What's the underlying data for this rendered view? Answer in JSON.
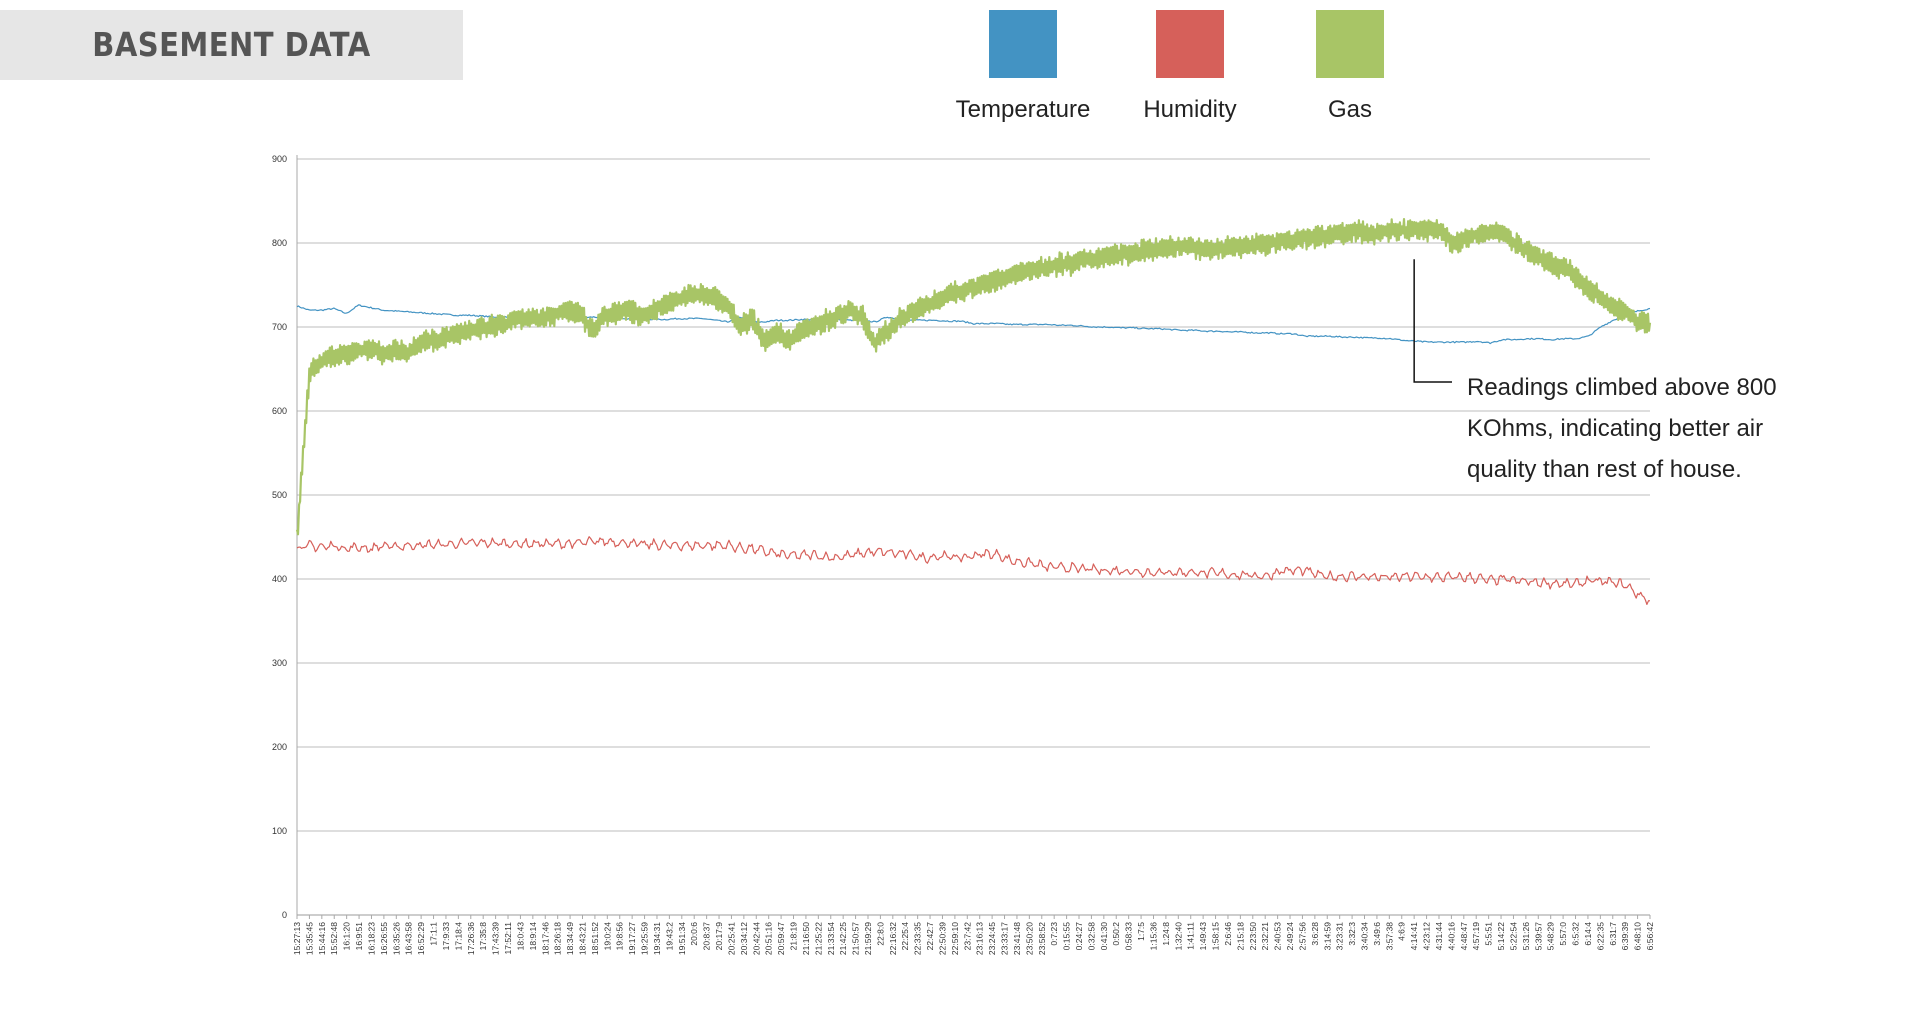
{
  "header": {
    "title": "BASEMENT DATA"
  },
  "legend": [
    {
      "label": "Temperature",
      "color": "#4393c3"
    },
    {
      "label": "Humidity",
      "color": "#d6605a"
    },
    {
      "label": "Gas",
      "color": "#a8c566"
    }
  ],
  "annotation": {
    "lines": [
      "Readings climbed above 800",
      "KOhms, indicating better air",
      "quality than rest of house."
    ]
  },
  "chart_data": {
    "type": "line",
    "title": "",
    "xlabel": "",
    "ylabel": "",
    "ylim": [
      0,
      900
    ],
    "y_ticks": [
      0,
      100,
      200,
      300,
      400,
      500,
      600,
      700,
      800,
      900
    ],
    "grid": true,
    "legend_position": "top",
    "x_ticks": [
      "15:27:13",
      "15:35:45",
      "15:44:16",
      "15:52:48",
      "16:1:20",
      "16:9:51",
      "16:18:23",
      "16:26:55",
      "16:35:26",
      "16:43:58",
      "16:52:29",
      "17:1:1",
      "17:9:33",
      "17:18:4",
      "17:26:36",
      "17:35:8",
      "17:43:39",
      "17:52:11",
      "18:0:43",
      "18:9:14",
      "18:17:46",
      "18:26:18",
      "18:34:49",
      "18:43:21",
      "18:51:52",
      "19:0:24",
      "19:8:56",
      "19:17:27",
      "19:25:59",
      "19:34:31",
      "19:43:2",
      "19:51:34",
      "20:0:6",
      "20:8:37",
      "20:17:9",
      "20:25:41",
      "20:34:12",
      "20:42:44",
      "20:51:16",
      "20:59:47",
      "21:8:19",
      "21:16:50",
      "21:25:22",
      "21:33:54",
      "21:42:25",
      "21:50:57",
      "21:59:29",
      "22:8:0",
      "22:16:32",
      "22:25:4",
      "22:33:35",
      "22:42:7",
      "22:50:39",
      "22:59:10",
      "23:7:42",
      "23:16:13",
      "23:24:45",
      "23:33:17",
      "23:41:48",
      "23:50:20",
      "23:58:52",
      "0:7:23",
      "0:15:55",
      "0:24:27",
      "0:32:58",
      "0:41:30",
      "0:50:2",
      "0:58:33",
      "1:7:5",
      "1:15:36",
      "1:24:8",
      "1:32:40",
      "1:41:11",
      "1:49:43",
      "1:58:15",
      "2:6:46",
      "2:15:18",
      "2:23:50",
      "2:32:21",
      "2:40:53",
      "2:49:24",
      "2:57:56",
      "3:6:28",
      "3:14:59",
      "3:23:31",
      "3:32:3",
      "3:40:34",
      "3:49:6",
      "3:57:38",
      "4:6:9",
      "4:14:41",
      "4:23:12",
      "4:31:44",
      "4:40:16",
      "4:48:47",
      "4:57:19",
      "5:5:51",
      "5:14:22",
      "5:22:54",
      "5:31:26",
      "5:39:57",
      "5:48:29",
      "5:57:0",
      "6:5:32",
      "6:14:4",
      "6:22:35",
      "6:31:7",
      "6:39:39",
      "6:48:10",
      "6:56:42"
    ],
    "series": [
      {
        "name": "Temperature",
        "color": "#4393c3",
        "y": [
          725,
          720,
          720,
          722,
          716,
          726,
          723,
          720,
          719,
          718,
          717,
          716,
          715,
          714,
          714,
          713,
          712,
          712,
          711,
          711,
          712,
          712,
          713,
          712,
          712,
          711,
          711,
          710,
          710,
          709,
          709,
          710,
          710,
          710,
          708,
          706,
          712,
          706,
          706,
          708,
          708,
          709,
          709,
          709,
          709,
          708,
          708,
          706,
          712,
          709,
          708,
          708,
          708,
          707,
          707,
          704,
          704,
          704,
          703,
          703,
          703,
          703,
          702,
          702,
          701,
          700,
          700,
          699,
          699,
          698,
          698,
          697,
          696,
          696,
          695,
          695,
          694,
          694,
          693,
          693,
          692,
          692,
          689,
          689,
          689,
          688,
          688,
          687,
          687,
          686,
          684,
          683,
          682,
          682,
          682,
          682,
          683,
          681,
          685,
          685,
          686,
          686,
          685,
          686,
          686,
          689,
          700,
          708,
          714,
          719,
          722
        ]
      },
      {
        "name": "Humidity",
        "color": "#d6605a",
        "y": [
          436,
          440,
          438,
          440,
          436,
          438,
          436,
          440,
          438,
          440,
          440,
          441,
          441,
          442,
          443,
          443,
          443,
          442,
          442,
          442,
          442,
          442,
          442,
          443,
          444,
          445,
          444,
          443,
          441,
          441,
          440,
          440,
          440,
          440,
          440,
          440,
          437,
          436,
          433,
          430,
          428,
          428,
          429,
          426,
          426,
          428,
          431,
          432,
          432,
          430,
          429,
          425,
          427,
          427,
          425,
          428,
          430,
          429,
          422,
          420,
          418,
          414,
          414,
          413,
          412,
          411,
          410,
          410,
          409,
          408,
          408,
          408,
          408,
          408,
          407,
          407,
          405,
          405,
          404,
          404,
          410,
          410,
          410,
          405,
          403,
          403,
          403,
          403,
          402,
          402,
          403,
          403,
          402,
          402,
          402,
          402,
          401,
          398,
          400,
          398,
          397,
          396,
          395,
          394,
          394,
          398,
          397,
          396,
          393,
          382,
          374
        ]
      },
      {
        "name": "Gas",
        "color": "#a8c566",
        "y": [
          450,
          645,
          660,
          665,
          668,
          672,
          675,
          668,
          672,
          670,
          682,
          685,
          688,
          692,
          696,
          698,
          702,
          705,
          710,
          710,
          712,
          715,
          720,
          715,
          695,
          712,
          718,
          720,
          712,
          720,
          727,
          733,
          738,
          740,
          735,
          725,
          700,
          710,
          682,
          695,
          685,
          697,
          700,
          707,
          714,
          720,
          712,
          680,
          695,
          708,
          718,
          725,
          732,
          738,
          744,
          748,
          752,
          756,
          760,
          765,
          768,
          772,
          775,
          775,
          780,
          782,
          785,
          786,
          788,
          790,
          792,
          794,
          796,
          794,
          793,
          793,
          795,
          796,
          798,
          800,
          802,
          804,
          806,
          808,
          810,
          812,
          814,
          812,
          812,
          815,
          815,
          815,
          815,
          814,
          800,
          805,
          810,
          815,
          812,
          800,
          790,
          782,
          775,
          770,
          760,
          745,
          735,
          725,
          718,
          705,
          705
        ]
      }
    ],
    "annotation_target": {
      "x": "4:14:41",
      "y": 814
    }
  }
}
